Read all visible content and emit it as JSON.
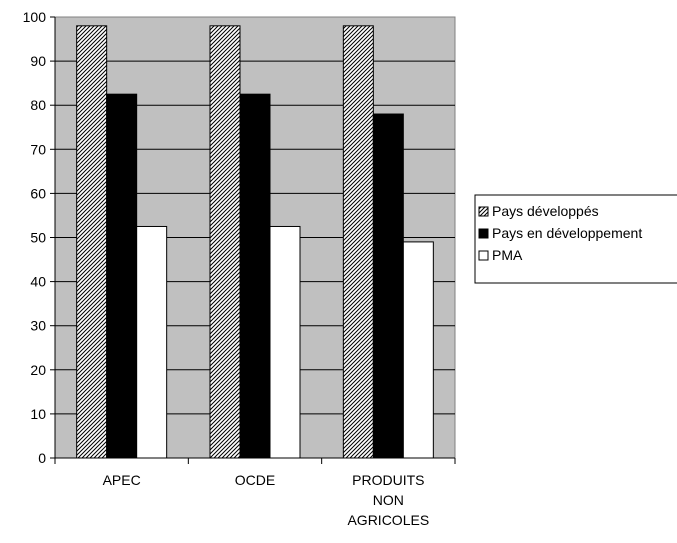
{
  "chart_data": {
    "type": "bar",
    "categories": [
      [
        "APEC"
      ],
      [
        "OCDE"
      ],
      [
        "PRODUITS",
        "NON",
        "AGRICOLES"
      ]
    ],
    "series": [
      {
        "name": "Pays développés",
        "values": [
          98,
          98,
          98
        ],
        "fill": "hatch"
      },
      {
        "name": "Pays en développement",
        "values": [
          82.5,
          82.5,
          78
        ],
        "fill": "#000000"
      },
      {
        "name": "PMA",
        "values": [
          52.5,
          52.5,
          49
        ],
        "fill": "#ffffff"
      }
    ],
    "ylim": [
      0,
      100
    ],
    "yticks": [
      0,
      10,
      20,
      30,
      40,
      50,
      60,
      70,
      80,
      90,
      100
    ],
    "plot_background": "#c0c0c0",
    "grid": true,
    "legend": "right"
  }
}
